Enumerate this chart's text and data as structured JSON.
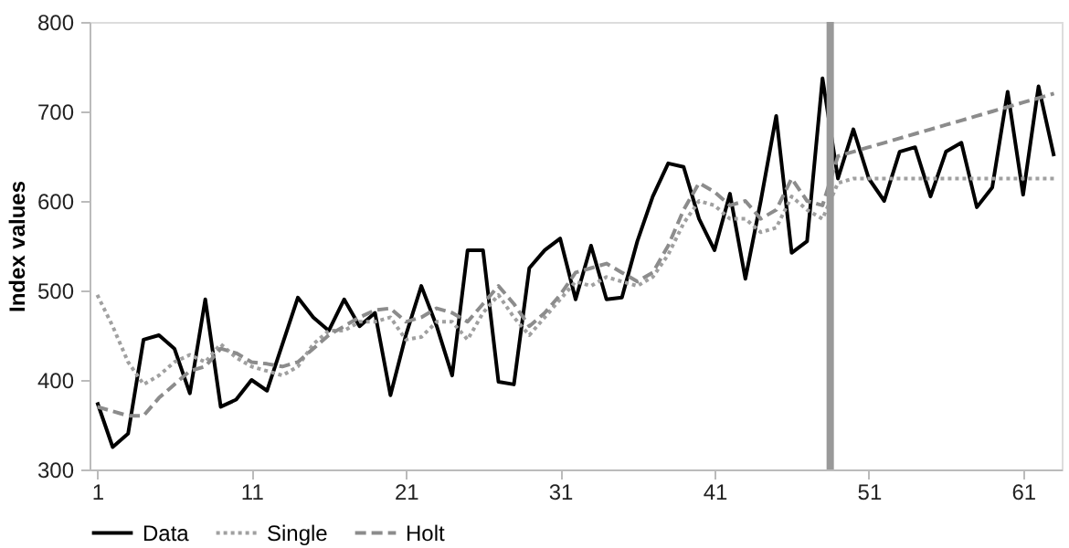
{
  "chart_data": {
    "type": "line",
    "ylabel": "Index values",
    "x": [
      1,
      2,
      3,
      4,
      5,
      6,
      7,
      8,
      9,
      10,
      11,
      12,
      13,
      14,
      15,
      16,
      17,
      18,
      19,
      20,
      21,
      22,
      23,
      24,
      25,
      26,
      27,
      28,
      29,
      30,
      31,
      32,
      33,
      34,
      35,
      36,
      37,
      38,
      39,
      40,
      41,
      42,
      43,
      44,
      45,
      46,
      47,
      48,
      49,
      50,
      51,
      52,
      53,
      54,
      55,
      56,
      57,
      58,
      59,
      60,
      61,
      62,
      63
    ],
    "series": [
      {
        "name": "Data",
        "color": "#000000",
        "line_style": "solid",
        "values": [
          375,
          325,
          340,
          445,
          450,
          435,
          385,
          490,
          370,
          378,
          400,
          388,
          440,
          492,
          470,
          455,
          490,
          460,
          475,
          383,
          450,
          505,
          460,
          405,
          545,
          545,
          398,
          395,
          525,
          545,
          558,
          490,
          550,
          490,
          492,
          555,
          605,
          642,
          638,
          580,
          545,
          608,
          513,
          600,
          695,
          542,
          555,
          737,
          625,
          680,
          625,
          600,
          655,
          660,
          605,
          655,
          665,
          593,
          615,
          722,
          607,
          728,
          650
        ]
      },
      {
        "name": "Single",
        "color": "#a0a0a0",
        "line_style": "dotted",
        "values": [
          495,
          460,
          420,
          395,
          405,
          420,
          428,
          420,
          440,
          425,
          415,
          410,
          405,
          415,
          440,
          455,
          455,
          465,
          465,
          470,
          445,
          448,
          465,
          465,
          445,
          475,
          495,
          470,
          450,
          470,
          490,
          510,
          505,
          515,
          510,
          505,
          515,
          540,
          575,
          600,
          595,
          580,
          580,
          565,
          570,
          605,
          590,
          580,
          620,
          625,
          625,
          625,
          625,
          625,
          625,
          625,
          625,
          625,
          625,
          625,
          625,
          625,
          625
        ]
      },
      {
        "name": "Holt",
        "color": "#8c8c8c",
        "line_style": "dashed",
        "values": [
          370,
          365,
          360,
          360,
          380,
          395,
          410,
          415,
          435,
          430,
          420,
          418,
          415,
          420,
          435,
          450,
          460,
          470,
          478,
          480,
          465,
          470,
          480,
          475,
          465,
          485,
          505,
          485,
          460,
          475,
          495,
          520,
          525,
          530,
          520,
          510,
          520,
          550,
          590,
          620,
          610,
          595,
          600,
          580,
          590,
          625,
          600,
          595,
          650,
          655,
          660,
          665,
          670,
          675,
          680,
          685,
          690,
          695,
          700,
          705,
          710,
          715,
          720
        ]
      }
    ],
    "xlim": [
      0.5,
      63.5
    ],
    "xticks": [
      1,
      11,
      21,
      31,
      41,
      51,
      61
    ],
    "ylim": [
      300,
      800
    ],
    "yticks": [
      300,
      400,
      500,
      600,
      700,
      800
    ],
    "ref_lines": [
      {
        "axis": "x",
        "value": 48.5,
        "color": "#999999"
      }
    ],
    "grid": false,
    "legend": "bottom",
    "marker": "none"
  }
}
